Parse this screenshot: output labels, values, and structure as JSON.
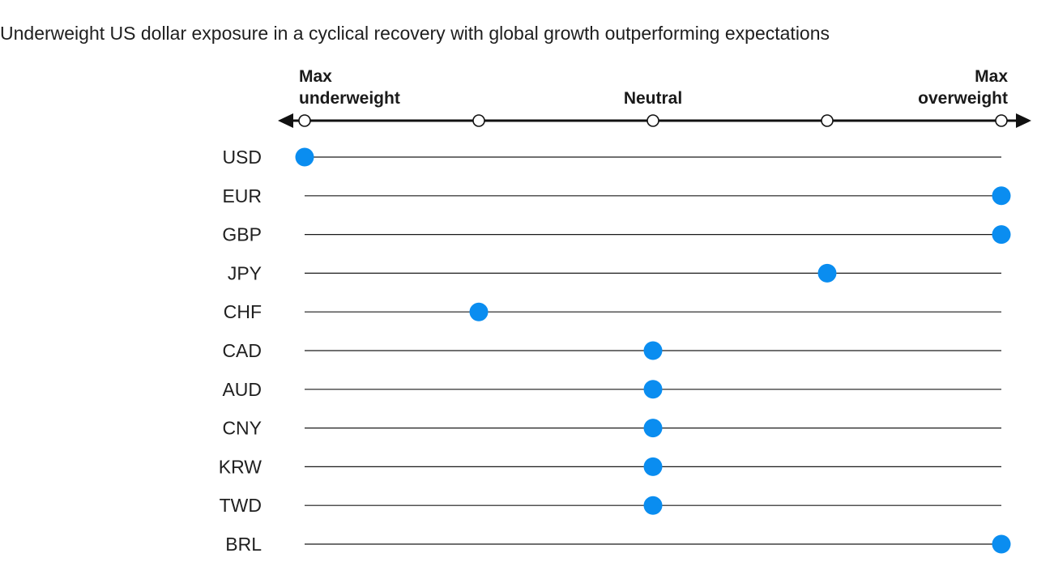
{
  "chart_data": {
    "type": "scatter",
    "title": "Underweight US dollar exposure in a cyclical recovery with global growth outperforming expectations",
    "scale": {
      "levels": [
        -2,
        -1,
        0,
        1,
        2
      ],
      "labels": [
        {
          "value": -2,
          "lines": [
            "Max",
            "underweight"
          ],
          "align": "start"
        },
        {
          "value": 0,
          "lines": [
            "Neutral"
          ],
          "align": "middle"
        },
        {
          "value": 2,
          "lines": [
            "Max",
            "overweight"
          ],
          "align": "end"
        }
      ]
    },
    "categories": [
      "USD",
      "EUR",
      "GBP",
      "JPY",
      "CHF",
      "CAD",
      "AUD",
      "CNY",
      "KRW",
      "TWD",
      "BRL"
    ],
    "values": [
      -2,
      2,
      2,
      1,
      -1,
      0,
      0,
      0,
      0,
      0,
      2
    ],
    "xlim": [
      -2,
      2
    ],
    "colors": {
      "point": "#0a8df0",
      "line": "#1a1a1a",
      "axis": "#111111"
    }
  }
}
